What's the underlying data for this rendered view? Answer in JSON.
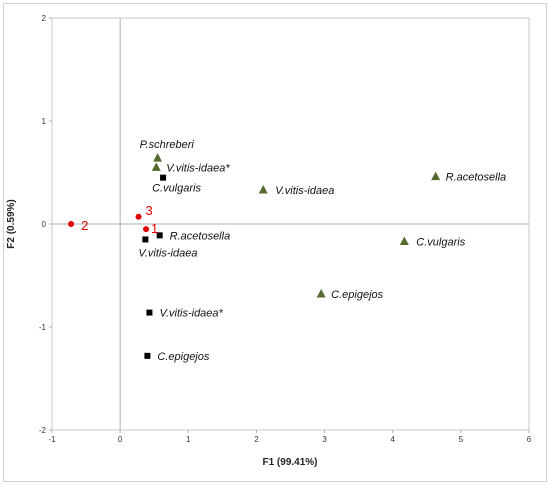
{
  "chart_data": {
    "type": "scatter",
    "xlabel": "F1 (99.41%)",
    "ylabel": "F2 (0.59%)",
    "xlim": [
      -1,
      6
    ],
    "ylim": [
      -2,
      2
    ],
    "xticks": [
      "-1",
      "0",
      "1",
      "2",
      "3",
      "4",
      "5",
      "6"
    ],
    "yticks": [
      "-2",
      "-1",
      "0",
      "1",
      "2"
    ],
    "grid": false,
    "colors": {
      "triangle": "#556b2f",
      "square": "#000000",
      "circle": "#e00000"
    },
    "series": [
      {
        "marker": "triangle",
        "points": [
          {
            "x": 0.55,
            "y": 0.64,
            "label": "P.schreberi"
          },
          {
            "x": 0.53,
            "y": 0.55,
            "label": "V.vitis-idaea*"
          },
          {
            "x": 2.1,
            "y": 0.33,
            "label": "V.vitis-idaea"
          },
          {
            "x": 4.63,
            "y": 0.46,
            "label": "R.acetosella"
          },
          {
            "x": 4.17,
            "y": -0.17,
            "label": "C.vulgaris"
          },
          {
            "x": 2.95,
            "y": -0.68,
            "label": "C.epigejos"
          }
        ]
      },
      {
        "marker": "square",
        "points": [
          {
            "x": 0.63,
            "y": 0.45,
            "label": "C.vulgaris"
          },
          {
            "x": 0.58,
            "y": -0.11,
            "label": "R.acetosella"
          },
          {
            "x": 0.37,
            "y": -0.15,
            "label": "V.vitis-idaea"
          },
          {
            "x": 0.43,
            "y": -0.86,
            "label": "V.vitis-idaea*"
          },
          {
            "x": 0.4,
            "y": -1.28,
            "label": "C.epigejos"
          }
        ]
      },
      {
        "marker": "circle",
        "points": [
          {
            "x": -0.72,
            "y": 0.0,
            "label": "2"
          },
          {
            "x": 0.27,
            "y": 0.07,
            "label": "3"
          },
          {
            "x": 0.38,
            "y": -0.05,
            "label": "1"
          }
        ]
      }
    ]
  }
}
